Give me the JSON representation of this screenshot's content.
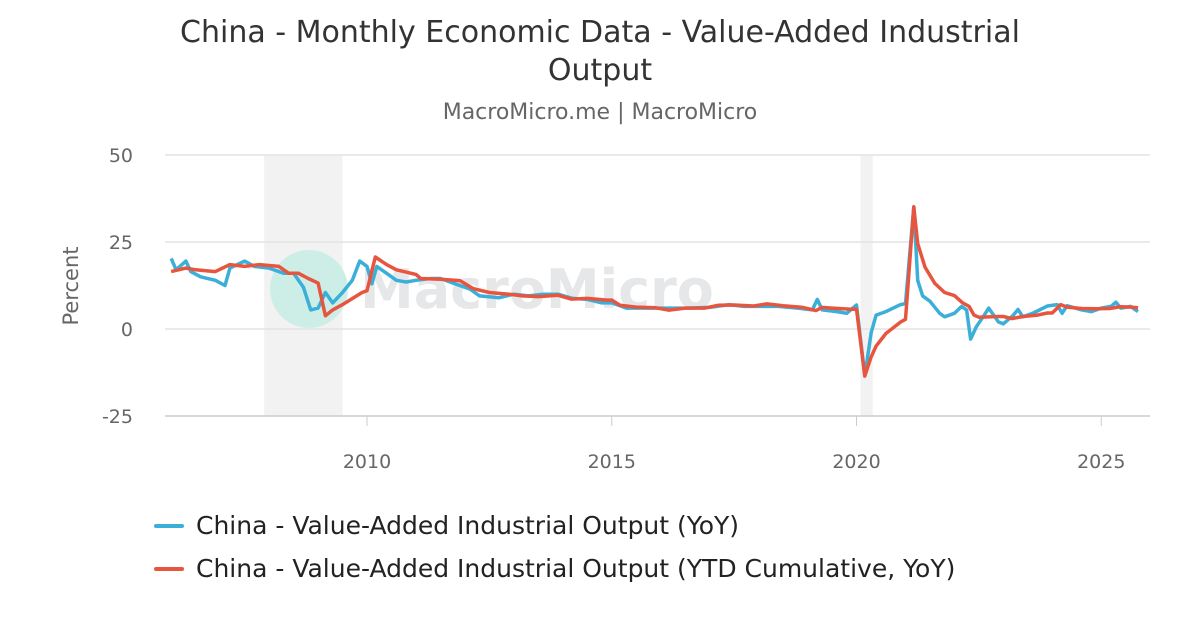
{
  "chart_data": {
    "type": "line",
    "title": "China - Monthly Economic Data - Value-Added Industrial Output",
    "subtitle": "MacroMicro.me | MacroMicro",
    "ylabel": "Percent",
    "xlabel": "",
    "ylim": [
      -25,
      50
    ],
    "yticks": [
      50,
      25,
      0,
      -25
    ],
    "xticks": [
      2010,
      2015,
      2020,
      2025
    ],
    "xlim": [
      2005.85,
      2026.05
    ],
    "grid": true,
    "legend": "bottom-left",
    "watermark": "MacroMicro",
    "shaded_periods": [
      [
        2007.9,
        2009.5
      ],
      [
        2020.08,
        2020.33
      ]
    ],
    "series": [
      {
        "name": "China - Value-Added Industrial Output (YoY)",
        "color": "#3CAFD9",
        "x": [
          2006.0,
          2006.1,
          2006.3,
          2006.4,
          2006.6,
          2006.9,
          2007.1,
          2007.2,
          2007.5,
          2007.7,
          2008.0,
          2008.3,
          2008.5,
          2008.7,
          2008.85,
          2009.0,
          2009.15,
          2009.3,
          2009.5,
          2009.7,
          2009.85,
          2010.0,
          2010.1,
          2010.2,
          2010.4,
          2010.6,
          2010.8,
          2011.0,
          2011.3,
          2011.5,
          2011.8,
          2012.1,
          2012.3,
          2012.7,
          2013.0,
          2013.3,
          2013.6,
          2013.9,
          2014.2,
          2014.5,
          2014.8,
          2015.0,
          2015.3,
          2015.6,
          2016.0,
          2016.5,
          2017.0,
          2017.4,
          2017.7,
          2018.0,
          2018.4,
          2018.8,
          2019.1,
          2019.2,
          2019.3,
          2019.6,
          2019.8,
          2020.0,
          2020.17,
          2020.3,
          2020.4,
          2020.6,
          2020.9,
          2021.0,
          2021.17,
          2021.25,
          2021.35,
          2021.5,
          2021.7,
          2021.8,
          2022.0,
          2022.15,
          2022.25,
          2022.33,
          2022.45,
          2022.6,
          2022.7,
          2022.9,
          2023.0,
          2023.2,
          2023.3,
          2023.4,
          2023.6,
          2023.9,
          2024.1,
          2024.2,
          2024.3,
          2024.6,
          2024.8,
          2025.0,
          2025.2,
          2025.3,
          2025.4,
          2025.6,
          2025.75
        ],
        "y": [
          20.3,
          17,
          19.5,
          16.5,
          15,
          14,
          12.5,
          17.5,
          19.5,
          18,
          17.5,
          16,
          16,
          12,
          5.5,
          6,
          10.5,
          7.5,
          10.5,
          14,
          19.5,
          18,
          13,
          18,
          16,
          14,
          13.5,
          14,
          14.5,
          14.5,
          13,
          11.5,
          9.5,
          9,
          10,
          9.5,
          10,
          10,
          8.8,
          8.5,
          7.5,
          7.5,
          6,
          6,
          6,
          6,
          6.2,
          7,
          6.5,
          6.5,
          6.5,
          6,
          5.5,
          8.5,
          5.5,
          5,
          4.5,
          6.9,
          -13.5,
          -1,
          4,
          5,
          7,
          7.3,
          35.1,
          14,
          9.5,
          8,
          4.5,
          3.5,
          4.5,
          6.5,
          5.5,
          -2.9,
          0.7,
          3.8,
          6,
          2,
          1.5,
          3.9,
          5.6,
          3.5,
          4.5,
          6.6,
          7,
          4.5,
          6.7,
          5.5,
          5,
          6,
          6.5,
          7.7,
          6,
          6.5,
          5
        ]
      },
      {
        "name": "China - Value-Added Industrial Output (YTD Cumulative, YoY)",
        "color": "#E8553E",
        "x": [
          2006.0,
          2006.3,
          2006.5,
          2006.9,
          2007.2,
          2007.5,
          2007.8,
          2008.2,
          2008.4,
          2008.6,
          2008.8,
          2009.0,
          2009.15,
          2009.3,
          2009.5,
          2009.9,
          2010.0,
          2010.17,
          2010.4,
          2010.6,
          2011.0,
          2011.1,
          2011.5,
          2011.9,
          2012.17,
          2012.5,
          2012.9,
          2013.17,
          2013.5,
          2013.9,
          2014.17,
          2014.5,
          2014.9,
          2015.0,
          2015.17,
          2015.5,
          2015.9,
          2016.17,
          2016.5,
          2016.9,
          2017.17,
          2017.5,
          2017.9,
          2018.17,
          2018.5,
          2018.9,
          2019.17,
          2019.3,
          2019.5,
          2019.9,
          2020.0,
          2020.17,
          2020.3,
          2020.4,
          2020.6,
          2020.9,
          2021.0,
          2021.17,
          2021.25,
          2021.4,
          2021.6,
          2021.8,
          2022.0,
          2022.17,
          2022.3,
          2022.4,
          2022.5,
          2022.9,
          2023.0,
          2023.17,
          2023.4,
          2023.7,
          2023.9,
          2024.0,
          2024.17,
          2024.3,
          2024.6,
          2024.9,
          2025.17,
          2025.4,
          2025.6,
          2025.75
        ],
        "y": [
          16.5,
          17.5,
          17,
          16.5,
          18.5,
          18,
          18.5,
          18,
          16,
          16,
          14.5,
          13.2,
          3.8,
          5.5,
          7,
          10.5,
          11,
          20.7,
          18.5,
          17,
          15.7,
          14.5,
          14.3,
          13.9,
          11.6,
          10.5,
          10,
          9.5,
          9.3,
          9.7,
          8.6,
          8.8,
          8.3,
          8.3,
          6.8,
          6.3,
          6.1,
          5.4,
          6,
          6,
          6.8,
          6.9,
          6.6,
          7.2,
          6.7,
          6.2,
          5.3,
          6.2,
          6,
          5.7,
          5.7,
          -13.5,
          -8,
          -4.9,
          -1.3,
          2,
          2.8,
          35.1,
          24.5,
          17.8,
          13.1,
          10.5,
          9.6,
          7.5,
          6.5,
          4,
          3.4,
          3.6,
          3.6,
          3,
          3.6,
          4,
          4.6,
          4.6,
          7,
          6.3,
          5.9,
          5.8,
          5.9,
          6.4,
          6.3,
          6.1
        ]
      }
    ]
  }
}
